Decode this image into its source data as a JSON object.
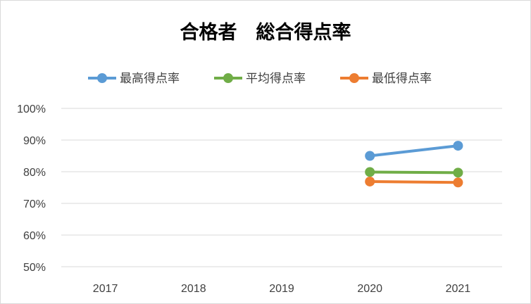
{
  "chart_data": {
    "type": "line",
    "title": "合格者　総合得点率",
    "xlabel": "",
    "ylabel": "",
    "categories": [
      "2017",
      "2018",
      "2019",
      "2020",
      "2021"
    ],
    "ylim": [
      0.5,
      1.0
    ],
    "yticks": [
      "50%",
      "60%",
      "70%",
      "80%",
      "90%",
      "100%"
    ],
    "ytick_values": [
      0.5,
      0.6,
      0.7,
      0.8,
      0.9,
      1.0
    ],
    "grid": true,
    "legend_position": "top",
    "series": [
      {
        "name": "最高得点率",
        "color": "#5b9bd5",
        "values": [
          null,
          null,
          null,
          0.85,
          0.882
        ]
      },
      {
        "name": "平均得点率",
        "color": "#70ad47",
        "values": [
          null,
          null,
          null,
          0.799,
          0.797
        ]
      },
      {
        "name": "最低得点率",
        "color": "#ed7d31",
        "values": [
          null,
          null,
          null,
          0.769,
          0.766
        ]
      }
    ]
  }
}
